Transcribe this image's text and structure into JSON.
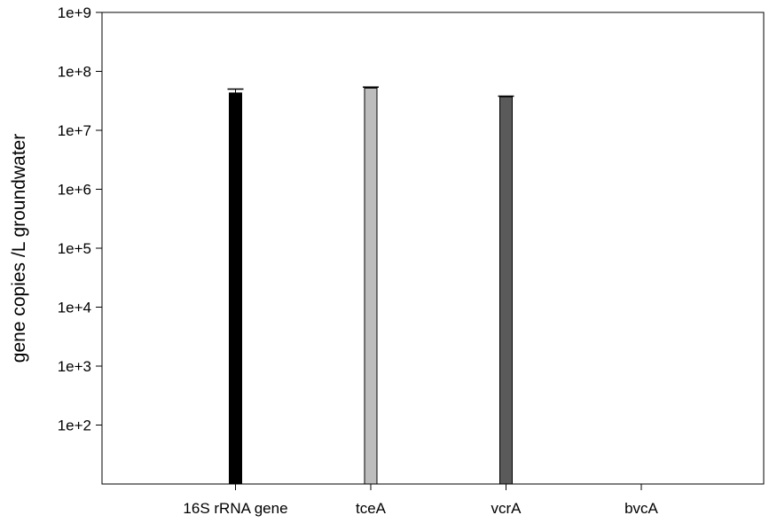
{
  "chart_data": {
    "type": "bar",
    "title": "",
    "xlabel": "",
    "ylabel": "gene copies /L groundwater",
    "yscale": "log",
    "ylim": [
      10,
      1000000000
    ],
    "y_ticks": [
      {
        "value": 100,
        "label": "1e+2"
      },
      {
        "value": 1000,
        "label": "1e+3"
      },
      {
        "value": 10000,
        "label": "1e+4"
      },
      {
        "value": 100000,
        "label": "1e+5"
      },
      {
        "value": 1000000,
        "label": "1e+6"
      },
      {
        "value": 10000000,
        "label": "1e+7"
      },
      {
        "value": 100000000,
        "label": "1e+8"
      },
      {
        "value": 1000000000,
        "label": "1e+9"
      }
    ],
    "categories": [
      "16S rRNA gene",
      "tceA",
      "vcrA",
      "bvcA"
    ],
    "values": [
      43000000,
      52000000,
      37000000,
      null
    ],
    "error_high": [
      50000000,
      54000000,
      38000000,
      null
    ],
    "colors": [
      "#000000",
      "#bdbdbd",
      "#5a5a5a",
      "#000000"
    ],
    "grid": false,
    "legend": "none"
  }
}
